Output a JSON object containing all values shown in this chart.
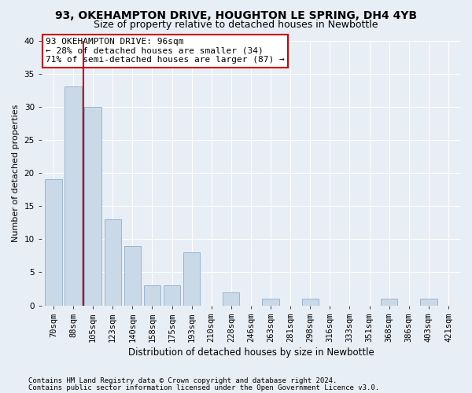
{
  "title1": "93, OKEHAMPTON DRIVE, HOUGHTON LE SPRING, DH4 4YB",
  "title2": "Size of property relative to detached houses in Newbottle",
  "xlabel": "Distribution of detached houses by size in Newbottle",
  "ylabel": "Number of detached properties",
  "categories": [
    "70sqm",
    "88sqm",
    "105sqm",
    "123sqm",
    "140sqm",
    "158sqm",
    "175sqm",
    "193sqm",
    "210sqm",
    "228sqm",
    "246sqm",
    "263sqm",
    "281sqm",
    "298sqm",
    "316sqm",
    "333sqm",
    "351sqm",
    "368sqm",
    "386sqm",
    "403sqm",
    "421sqm"
  ],
  "values": [
    19,
    33,
    30,
    13,
    9,
    3,
    3,
    8,
    0,
    2,
    0,
    1,
    0,
    1,
    0,
    0,
    0,
    1,
    0,
    1,
    0
  ],
  "bar_color": "#c9d9e8",
  "bar_edge_color": "#9ab5cc",
  "red_line_x": 1.5,
  "annotation_text": "93 OKEHAMPTON DRIVE: 96sqm\n← 28% of detached houses are smaller (34)\n71% of semi-detached houses are larger (87) →",
  "annotation_box_color": "#ffffff",
  "annotation_box_edge": "#cc0000",
  "footer1": "Contains HM Land Registry data © Crown copyright and database right 2024.",
  "footer2": "Contains public sector information licensed under the Open Government Licence v3.0.",
  "bg_color": "#e8eef5",
  "plot_bg_color": "#e8eef5",
  "ylim": [
    0,
    40
  ],
  "yticks": [
    0,
    5,
    10,
    15,
    20,
    25,
    30,
    35,
    40
  ],
  "title1_fontsize": 10,
  "title2_fontsize": 9,
  "xlabel_fontsize": 8.5,
  "ylabel_fontsize": 8,
  "tick_fontsize": 7.5,
  "footer_fontsize": 6.5,
  "annot_fontsize": 8
}
